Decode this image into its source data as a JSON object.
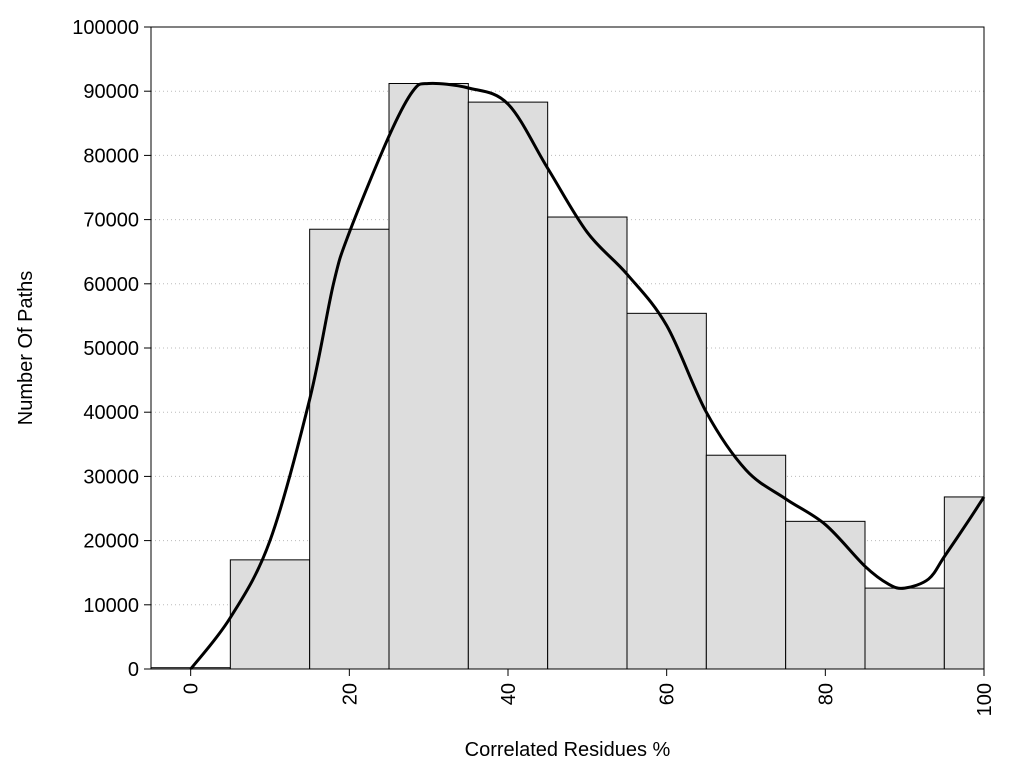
{
  "chart_data": {
    "type": "bar",
    "subtype": "histogram-with-density-curve",
    "title": "",
    "xlabel": "Correlated Residues %",
    "ylabel": "Number Of Paths",
    "xlim": [
      -5,
      100
    ],
    "ylim": [
      0,
      100000
    ],
    "x_ticks": [
      0,
      20,
      40,
      60,
      80,
      100
    ],
    "x_tick_labels": [
      "0",
      "20",
      "40",
      "60",
      "80",
      "100"
    ],
    "x_tick_rotation": "vertical",
    "y_ticks": [
      0,
      10000,
      20000,
      30000,
      40000,
      50000,
      60000,
      70000,
      80000,
      90000,
      100000
    ],
    "y_tick_labels": [
      "0",
      "10000",
      "20000",
      "30000",
      "40000",
      "50000",
      "60000",
      "70000",
      "80000",
      "90000",
      "100000"
    ],
    "grid": "horizontal dotted",
    "bar_color": "#dddddd",
    "bar_edge_color": "#000000",
    "line_color": "#000000",
    "bins": [
      {
        "x_start": -5,
        "x_end": 5,
        "value": 200
      },
      {
        "x_start": 5,
        "x_end": 15,
        "value": 17000
      },
      {
        "x_start": 15,
        "x_end": 25,
        "value": 68500
      },
      {
        "x_start": 25,
        "x_end": 35,
        "value": 91200
      },
      {
        "x_start": 35,
        "x_end": 45,
        "value": 88300
      },
      {
        "x_start": 45,
        "x_end": 55,
        "value": 70400
      },
      {
        "x_start": 55,
        "x_end": 65,
        "value": 55400
      },
      {
        "x_start": 65,
        "x_end": 75,
        "value": 33300
      },
      {
        "x_start": 75,
        "x_end": 85,
        "value": 23000
      },
      {
        "x_start": 85,
        "x_end": 95,
        "value": 12600
      },
      {
        "x_start": 95,
        "x_end": 100,
        "value": 26800
      }
    ],
    "curve": {
      "x": [
        0,
        5,
        10,
        15,
        18,
        20,
        25,
        28,
        30,
        35,
        40,
        45,
        50,
        55,
        60,
        65,
        70,
        75,
        80,
        85,
        88,
        90,
        93,
        95,
        98,
        100
      ],
      "y": [
        0,
        8000,
        20000,
        42000,
        60000,
        68000,
        83000,
        90000,
        91200,
        90500,
        88000,
        78000,
        68000,
        61500,
        53500,
        40000,
        31000,
        26500,
        22500,
        16000,
        13200,
        12600,
        14000,
        17500,
        23000,
        26800
      ]
    }
  }
}
